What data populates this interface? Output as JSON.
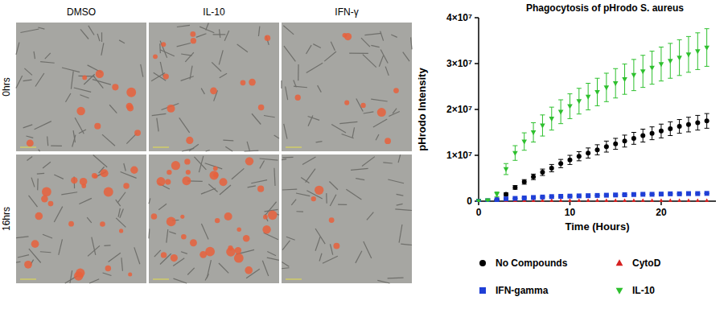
{
  "chart_data": {
    "type": "scatter",
    "title": "Phagocytosis of pHrodo S. aureus",
    "x_label": "Time (Hours)",
    "y_label": "pHrodo Intensity",
    "x": [
      0,
      1,
      2,
      3,
      4,
      5,
      6,
      7,
      8,
      9,
      10,
      11,
      12,
      13,
      14,
      15,
      16,
      17,
      18,
      19,
      20,
      21,
      22,
      23,
      24,
      25
    ],
    "xlim": [
      0,
      26
    ],
    "xticks": [
      0,
      10,
      20
    ],
    "ylim": [
      0,
      40000000
    ],
    "yticks": [
      0,
      {
        "value": 10000000,
        "label": "1×10⁷"
      },
      {
        "value": 20000000,
        "label": "2×10⁷"
      },
      {
        "value": 30000000,
        "label": "3×10⁷"
      },
      {
        "value": 40000000,
        "label": "4×10⁷"
      }
    ],
    "grid": false,
    "legend": "bottom",
    "series": [
      {
        "name": "No Compounds",
        "color": "#000000",
        "marker": "circle",
        "values": [
          0,
          0,
          300000,
          1500000,
          3000000,
          4200000,
          5300000,
          6300000,
          7200000,
          8200000,
          9000000,
          9800000,
          10500000,
          11200000,
          11900000,
          12500000,
          13100000,
          13700000,
          14300000,
          14800000,
          15300000,
          15800000,
          16300000,
          16700000,
          17100000,
          17500000
        ],
        "errors": [
          0,
          0,
          100000,
          300000,
          400000,
          500000,
          600000,
          700000,
          800000,
          900000,
          1000000,
          1000000,
          1100000,
          1100000,
          1200000,
          1200000,
          1300000,
          1300000,
          1400000,
          1400000,
          1500000,
          1500000,
          1500000,
          1600000,
          1600000,
          1600000
        ]
      },
      {
        "name": "CytoD",
        "color": "#d62020",
        "marker": "triangle",
        "values": [
          0,
          0,
          0,
          0,
          0,
          0,
          0,
          0,
          0,
          0,
          0,
          0,
          0,
          0,
          0,
          0,
          0,
          0,
          0,
          0,
          0,
          0,
          0,
          0,
          0,
          0
        ],
        "errors": [
          0,
          0,
          0,
          0,
          0,
          0,
          0,
          0,
          0,
          0,
          0,
          0,
          0,
          0,
          0,
          0,
          0,
          0,
          0,
          0,
          0,
          0,
          0,
          0,
          0,
          0
        ]
      },
      {
        "name": "IFN-gamma",
        "color": "#1f3fd6",
        "marker": "square",
        "values": [
          0,
          100000,
          300000,
          500000,
          600000,
          700000,
          800000,
          900000,
          1000000,
          1050000,
          1100000,
          1150000,
          1200000,
          1250000,
          1300000,
          1350000,
          1400000,
          1450000,
          1500000,
          1500000,
          1550000,
          1600000,
          1600000,
          1650000,
          1650000,
          1700000
        ],
        "errors": [
          0,
          50000,
          50000,
          50000,
          50000,
          50000,
          50000,
          50000,
          50000,
          50000,
          50000,
          50000,
          50000,
          50000,
          50000,
          50000,
          50000,
          50000,
          50000,
          50000,
          50000,
          50000,
          50000,
          50000,
          50000,
          50000
        ]
      },
      {
        "name": "IL-10",
        "color": "#2ec02e",
        "marker": "triangle-down",
        "values": [
          0,
          200000,
          1500000,
          7000000,
          10500000,
          13000000,
          15000000,
          16500000,
          18000000,
          19500000,
          20700000,
          21800000,
          22800000,
          23800000,
          24800000,
          25700000,
          26600000,
          27500000,
          28300000,
          29100000,
          29900000,
          30600000,
          31300000,
          32000000,
          32700000,
          33500000
        ],
        "errors": [
          0,
          100000,
          500000,
          1200000,
          1600000,
          1900000,
          2100000,
          2300000,
          2500000,
          2600000,
          2700000,
          2800000,
          2900000,
          3000000,
          3100000,
          3200000,
          3300000,
          3400000,
          3500000,
          3600000,
          3700000,
          3800000,
          3900000,
          3900000,
          4000000,
          4100000
        ]
      }
    ]
  },
  "micrographs": {
    "columns": [
      "DMSO",
      "IL-10",
      "IFN-γ"
    ],
    "rows": [
      "0hrs",
      "16hrs"
    ]
  }
}
